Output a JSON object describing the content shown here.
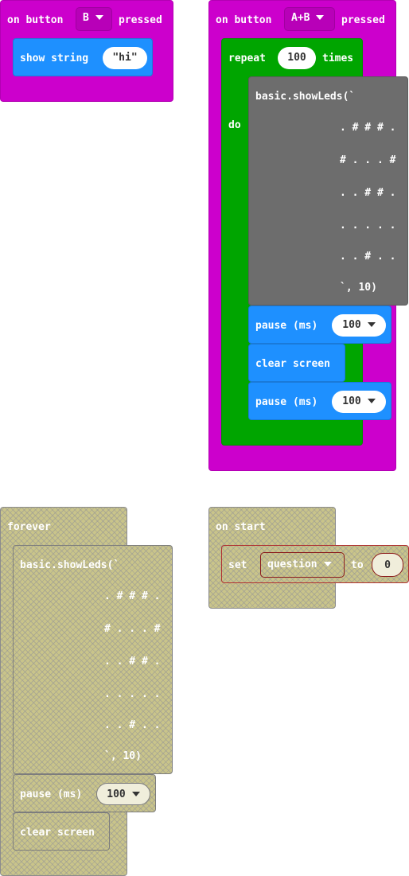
{
  "on_button_b": {
    "prefix": "on button",
    "button_value": "B",
    "suffix": "pressed",
    "show_string_label": "show string",
    "string_value": "hi"
  },
  "on_button_ab": {
    "prefix": "on button",
    "button_value": "A+B",
    "suffix": "pressed",
    "repeat_label": "repeat",
    "repeat_count": "100",
    "times_label": "times",
    "do_label": "do",
    "showleds_open": "basic.showLeds(`",
    "led_rows": [
      ". # # # .",
      "# . . . #",
      ". . # # .",
      ". . . . .",
      ". . # . ."
    ],
    "showleds_close": "`, 10)",
    "pause1_label": "pause (ms)",
    "pause1_value": "100",
    "clear_label": "clear screen",
    "pause2_label": "pause (ms)",
    "pause2_value": "100"
  },
  "forever": {
    "label": "forever",
    "showleds_open": "basic.showLeds(`",
    "led_rows": [
      ". # # # .",
      "# . . . #",
      ". . # # .",
      ". . . . .",
      ". . # . ."
    ],
    "showleds_close": "`, 10)",
    "pause_label": "pause (ms)",
    "pause_value": "100",
    "clear_label": "clear screen"
  },
  "on_start": {
    "label": "on start",
    "set_label": "set",
    "variable": "question",
    "to_label": "to",
    "value": "0"
  },
  "colors": {
    "events": "#cc00cc",
    "loops": "#00a500",
    "basic": "#1e90ff",
    "code": "#6d6d6d",
    "disabled": "#c9c48a"
  }
}
